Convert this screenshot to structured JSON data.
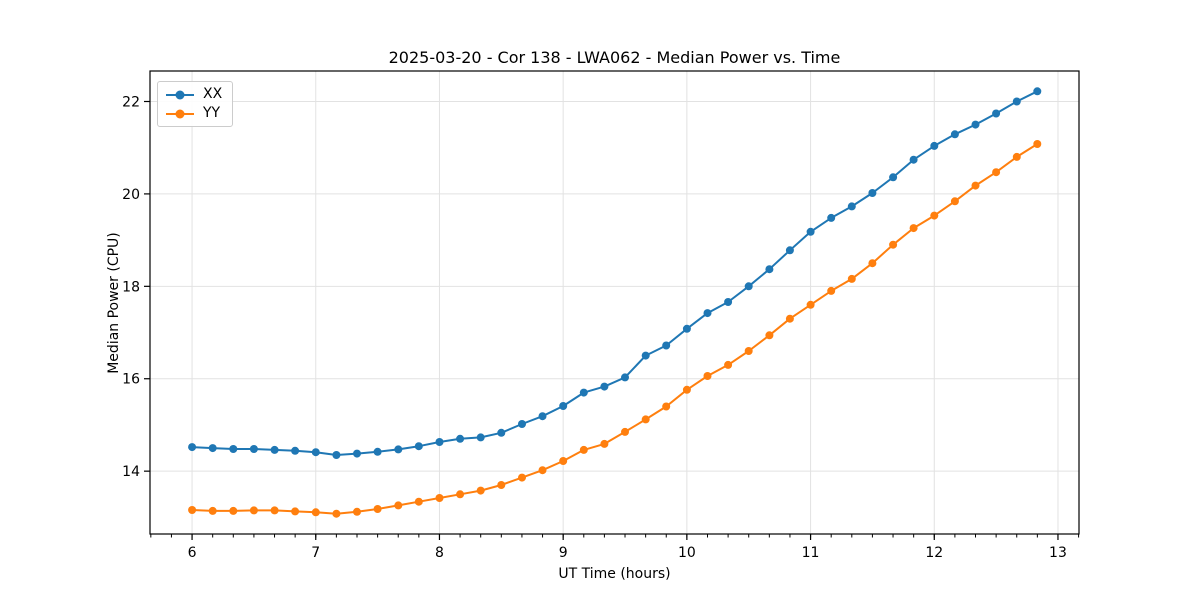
{
  "figure": {
    "background": "#ffffff",
    "spine_color": "#000000",
    "grid_color": "#e2e2e2",
    "tick_label_color": "#000000"
  },
  "chart_data": {
    "type": "line",
    "title": "2025-03-20 - Cor 138 - LWA062 - Median Power vs. Time",
    "xlabel": "UT Time (hours)",
    "ylabel": "Median Power (CPU)",
    "xlim": [
      5.66,
      13.17
    ],
    "ylim": [
      12.64,
      22.66
    ],
    "x_ticks": [
      6,
      7,
      8,
      9,
      10,
      11,
      12,
      13
    ],
    "y_ticks": [
      14,
      16,
      18,
      20,
      22
    ],
    "x_minor_step": 0.166667,
    "grid": true,
    "legend_position": "upper-left",
    "x": [
      6.0,
      6.167,
      6.333,
      6.5,
      6.667,
      6.833,
      7.0,
      7.167,
      7.333,
      7.5,
      7.667,
      7.833,
      8.0,
      8.167,
      8.333,
      8.5,
      8.667,
      8.833,
      9.0,
      9.167,
      9.333,
      9.5,
      9.667,
      9.833,
      10.0,
      10.167,
      10.333,
      10.5,
      10.667,
      10.833,
      11.0,
      11.167,
      11.333,
      11.5,
      11.667,
      11.833,
      12.0,
      12.167,
      12.333,
      12.5,
      12.667,
      12.833
    ],
    "series": [
      {
        "name": "XX",
        "color": "#1f77b4",
        "values": [
          14.52,
          14.5,
          14.48,
          14.48,
          14.46,
          14.44,
          14.41,
          14.35,
          14.38,
          14.42,
          14.47,
          14.54,
          14.63,
          14.7,
          14.73,
          14.83,
          15.02,
          15.19,
          15.41,
          15.7,
          15.83,
          16.03,
          16.5,
          16.72,
          17.08,
          17.42,
          17.66,
          18.0,
          18.37,
          18.78,
          19.18,
          19.48,
          19.73,
          20.02,
          20.36,
          20.74,
          21.04,
          21.29,
          21.5,
          21.74,
          22.0,
          22.22
        ]
      },
      {
        "name": "YY",
        "color": "#ff7f0e",
        "values": [
          13.16,
          13.14,
          13.14,
          13.15,
          13.15,
          13.13,
          13.11,
          13.08,
          13.12,
          13.18,
          13.26,
          13.34,
          13.42,
          13.5,
          13.58,
          13.7,
          13.86,
          14.02,
          14.22,
          14.46,
          14.59,
          14.85,
          15.12,
          15.4,
          15.76,
          16.06,
          16.3,
          16.6,
          16.94,
          17.3,
          17.6,
          17.9,
          18.16,
          18.5,
          18.9,
          19.26,
          19.53,
          19.84,
          20.18,
          20.47,
          20.8,
          21.08
        ]
      }
    ]
  }
}
